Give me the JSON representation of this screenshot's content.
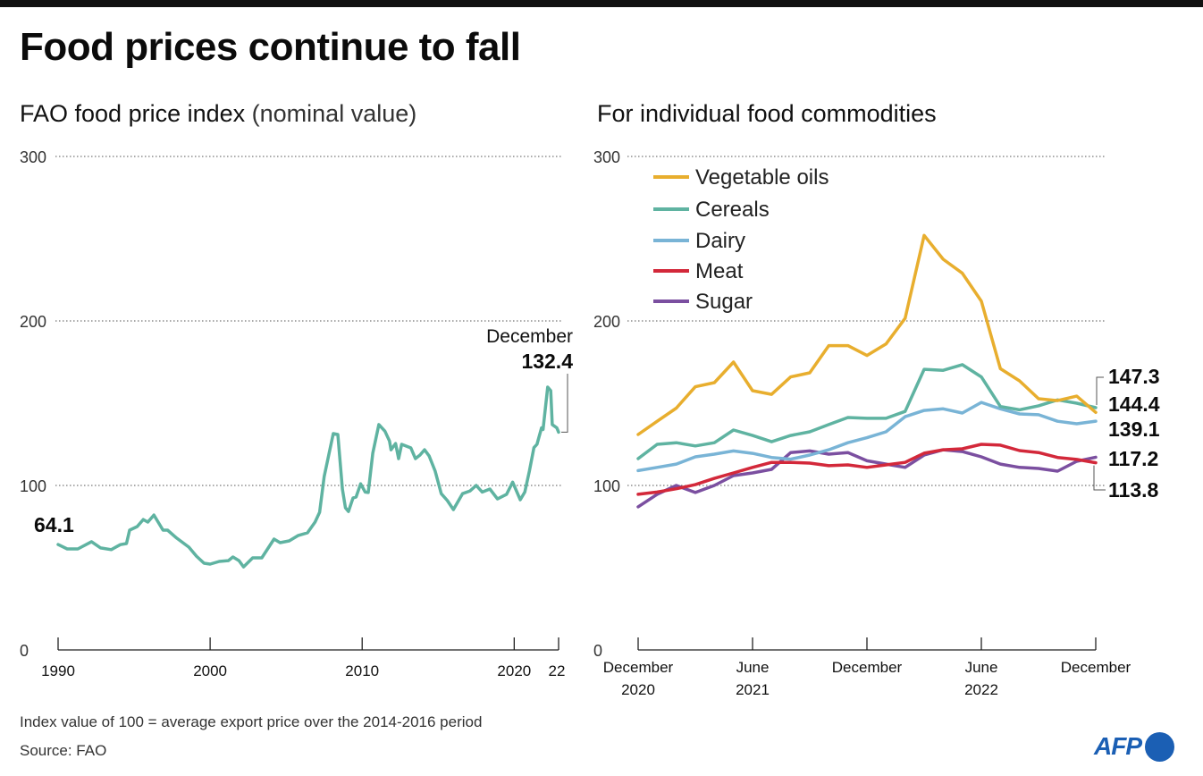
{
  "title": "Food prices continue to fall",
  "footer": {
    "note": "Index value of 100 = average export price over the 2014-2016 period",
    "source": "Source: FAO",
    "logo": "AFP"
  },
  "chart_data": [
    {
      "type": "line",
      "title": "FAO food price index",
      "title_suffix": "(nominal value)",
      "xlabel": "",
      "ylabel": "",
      "ylim": [
        0,
        300
      ],
      "xlim": [
        1990,
        2022.92
      ],
      "y_ticks": [
        0,
        100,
        200,
        300
      ],
      "x_ticks": [
        {
          "value": 1990,
          "label": "1990"
        },
        {
          "value": 2000,
          "label": "2000"
        },
        {
          "value": 2010,
          "label": "2010"
        },
        {
          "value": 2020,
          "label": "2020"
        },
        {
          "value": 2022.92,
          "label": "22"
        }
      ],
      "grid": true,
      "color": "#5fb3a1",
      "series": [
        {
          "name": "FAO food price index",
          "x": [
            1990.0,
            1990.6,
            1991.3,
            1992.2,
            1992.8,
            1993.5,
            1994.1,
            1994.5,
            1994.7,
            1995.2,
            1995.6,
            1995.9,
            1996.3,
            1996.9,
            1997.2,
            1997.8,
            1998.6,
            1999.1,
            1999.6,
            2000.0,
            2000.6,
            2001.2,
            2001.5,
            2001.9,
            2002.2,
            2002.8,
            2003.4,
            2004.2,
            2004.6,
            2005.2,
            2005.8,
            2006.4,
            2006.9,
            2007.2,
            2007.5,
            2008.1,
            2008.4,
            2008.7,
            2008.9,
            2009.1,
            2009.4,
            2009.6,
            2009.9,
            2010.2,
            2010.4,
            2010.7,
            2011.1,
            2011.5,
            2011.8,
            2011.9,
            2012.2,
            2012.4,
            2012.6,
            2013.2,
            2013.5,
            2013.8,
            2014.1,
            2014.4,
            2014.8,
            2015.2,
            2015.6,
            2016.0,
            2016.6,
            2017.1,
            2017.5,
            2017.9,
            2018.4,
            2018.9,
            2019.5,
            2019.9,
            2020.4,
            2020.7,
            2021.0,
            2021.3,
            2021.5,
            2021.8,
            2021.9,
            2022.2,
            2022.4,
            2022.5,
            2022.8,
            2022.92
          ],
          "y": [
            64.1,
            61.4,
            61.4,
            65.8,
            62,
            61,
            64,
            64.7,
            72.8,
            75,
            79.3,
            77.7,
            82,
            72.8,
            72.8,
            68,
            62.5,
            57,
            52.7,
            52.2,
            53.8,
            54.3,
            56.5,
            54.3,
            50.5,
            56,
            56,
            67.4,
            65.2,
            66.3,
            69.6,
            71.2,
            77.7,
            83.7,
            105.4,
            131.5,
            131,
            97.8,
            86.4,
            84.2,
            92.4,
            93,
            101,
            96,
            95.7,
            119.6,
            137,
            133,
            127,
            121.7,
            125.5,
            116.3,
            125,
            122.8,
            116.3,
            118.5,
            121.7,
            118,
            108.7,
            95,
            90.8,
            85.3,
            95,
            96.7,
            100,
            96,
            97.8,
            91.8,
            94.6,
            102,
            91.3,
            96,
            108.7,
            123,
            125,
            135,
            134,
            159.8,
            157.6,
            137,
            135,
            132.4
          ]
        }
      ],
      "annotations": [
        {
          "label": "64.1",
          "target": "start"
        },
        {
          "label": "December",
          "value_label": "132.4",
          "target": "end"
        }
      ]
    },
    {
      "type": "line",
      "title": "For individual food commodities",
      "xlabel": "",
      "ylabel": "",
      "ylim": [
        0,
        300
      ],
      "y_ticks": [
        0,
        100,
        200,
        300
      ],
      "grid": true,
      "legend_position": "top-left",
      "categories": [
        "Dec 2020",
        "Jan 2021",
        "Feb 2021",
        "Mar 2021",
        "Apr 2021",
        "May 2021",
        "Jun 2021",
        "Jul 2021",
        "Aug 2021",
        "Sep 2021",
        "Oct 2021",
        "Nov 2021",
        "Dec 2021",
        "Jan 2022",
        "Feb 2022",
        "Mar 2022",
        "Apr 2022",
        "May 2022",
        "Jun 2022",
        "Jul 2022",
        "Aug 2022",
        "Sep 2022",
        "Oct 2022",
        "Nov 2022",
        "Dec 2022"
      ],
      "x_ticks": [
        {
          "index": 0,
          "line1": "December",
          "line2": "2020"
        },
        {
          "index": 6,
          "line1": "June",
          "line2": "2021"
        },
        {
          "index": 12,
          "line1": "December",
          "line2": ""
        },
        {
          "index": 18,
          "line1": "June",
          "line2": "2022"
        },
        {
          "index": 24,
          "line1": "December",
          "line2": ""
        }
      ],
      "series": [
        {
          "name": "Vegetable oils",
          "color": "#e8ae2e",
          "values": [
            131,
            139,
            147,
            160,
            162.5,
            175,
            157.6,
            155.4,
            166,
            168.5,
            185,
            185,
            179,
            186,
            201.6,
            252,
            237.5,
            229,
            212,
            171,
            163.6,
            152.7,
            151.6,
            154.3,
            144.4
          ]
        },
        {
          "name": "Cereals",
          "color": "#5fb3a1",
          "values": [
            116.3,
            125,
            126,
            124,
            126,
            133.7,
            130.4,
            126.6,
            130.4,
            132.6,
            137,
            141.3,
            140.8,
            140.8,
            145,
            170.6,
            170,
            173.4,
            166,
            148,
            146,
            148.4,
            152,
            150,
            147.3
          ]
        },
        {
          "name": "Dairy",
          "color": "#79b4d6",
          "values": [
            109,
            111,
            113,
            117.4,
            119,
            121,
            119.5,
            117,
            116,
            118.5,
            121.7,
            126,
            129,
            132.6,
            141.8,
            145.6,
            146.6,
            144,
            150.5,
            146.6,
            143.5,
            143,
            139,
            137.5,
            139.1
          ]
        },
        {
          "name": "Meat",
          "color": "#d3283a",
          "values": [
            94.6,
            96,
            98,
            100.5,
            104.3,
            107.6,
            111,
            114,
            114,
            113.6,
            112,
            112.5,
            111,
            112.5,
            114,
            119.6,
            121.7,
            122.3,
            125,
            124.5,
            121.2,
            120,
            117,
            115.8,
            113.8
          ]
        },
        {
          "name": "Sugar",
          "color": "#7b4fa0",
          "values": [
            87,
            94.6,
            100,
            95.7,
            100,
            106,
            107.6,
            109.8,
            120,
            121,
            119,
            120,
            115,
            113,
            111,
            118.5,
            121.7,
            120.6,
            117.4,
            113,
            111,
            110.3,
            108.7,
            114.7,
            117.2
          ]
        }
      ],
      "end_labels": [
        "147.3",
        "144.4",
        "139.1",
        "117.2",
        "113.8"
      ]
    }
  ]
}
